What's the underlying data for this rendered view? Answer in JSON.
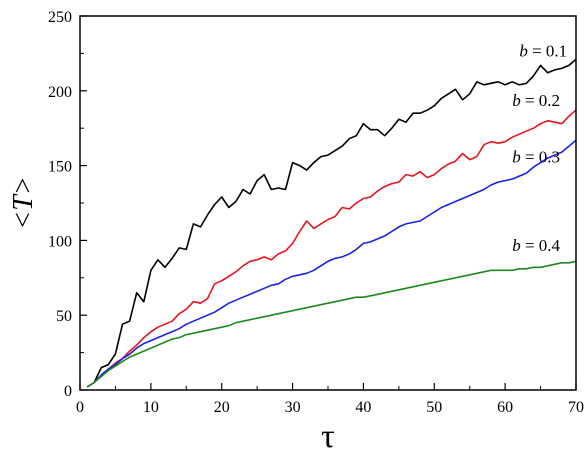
{
  "chart_data": {
    "type": "line",
    "title": "",
    "xlabel": "τ",
    "ylabel": "<T>",
    "xlim": [
      0,
      70
    ],
    "ylim": [
      0,
      250
    ],
    "xticks": [
      0,
      10,
      20,
      30,
      40,
      50,
      60,
      70
    ],
    "yticks": [
      0,
      50,
      100,
      150,
      200,
      250
    ],
    "grid": false,
    "legend": "inline labels near line ends",
    "x": [
      1,
      2,
      3,
      4,
      5,
      6,
      7,
      8,
      9,
      10,
      11,
      12,
      13,
      14,
      15,
      16,
      17,
      18,
      19,
      20,
      21,
      22,
      23,
      24,
      25,
      26,
      27,
      28,
      29,
      30,
      31,
      32,
      33,
      34,
      35,
      36,
      37,
      38,
      39,
      40,
      41,
      42,
      43,
      44,
      45,
      46,
      47,
      48,
      49,
      50,
      51,
      52,
      53,
      54,
      55,
      56,
      57,
      58,
      59,
      60,
      61,
      62,
      63,
      64,
      65,
      66,
      67,
      68,
      69,
      70
    ],
    "series": [
      {
        "name": "b = 0.1",
        "color": "#000000",
        "values": [
          2,
          5,
          15,
          17,
          24,
          44,
          46,
          65,
          59,
          80,
          87,
          82,
          88,
          95,
          94,
          111,
          109,
          117,
          124,
          129,
          122,
          126,
          134,
          131,
          140,
          144,
          134,
          135,
          134,
          152,
          150,
          147,
          152,
          156,
          157,
          160,
          163,
          168,
          170,
          178,
          174,
          174,
          170,
          175,
          181,
          179,
          185,
          185,
          187,
          190,
          195,
          198,
          201,
          194,
          198,
          206,
          204,
          205,
          206,
          204,
          206,
          204,
          205,
          210,
          217,
          212,
          214,
          215,
          217,
          221
        ]
      },
      {
        "name": "b = 0.2",
        "color": "#e8141c",
        "values": [
          2,
          5,
          10,
          14,
          18,
          21,
          26,
          30,
          35,
          39,
          42,
          44,
          46,
          51,
          54,
          59,
          58,
          61,
          71,
          73,
          76,
          79,
          83,
          86,
          87,
          89,
          87,
          91,
          93,
          98,
          106,
          113,
          108,
          111,
          114,
          116,
          122,
          121,
          125,
          128,
          129,
          133,
          136,
          138,
          139,
          144,
          143,
          146,
          142,
          144,
          148,
          151,
          153,
          158,
          154,
          156,
          164,
          166,
          165,
          166,
          169,
          171,
          173,
          175,
          178,
          180,
          179,
          178,
          183,
          187
        ]
      },
      {
        "name": "b = 0.3",
        "color": "#1a22e6",
        "values": [
          2,
          5,
          10,
          14,
          17,
          21,
          24,
          28,
          31,
          33,
          35,
          37,
          39,
          41,
          44,
          46,
          48,
          50,
          52,
          55,
          58,
          60,
          62,
          64,
          66,
          68,
          70,
          71,
          74,
          76,
          77,
          78,
          80,
          83,
          86,
          88,
          89,
          91,
          94,
          98,
          99,
          101,
          103,
          106,
          109,
          111,
          112,
          113,
          116,
          119,
          122,
          124,
          126,
          128,
          130,
          132,
          134,
          137,
          139,
          140,
          141,
          143,
          145,
          149,
          152,
          155,
          157,
          159,
          163,
          167
        ]
      },
      {
        "name": "b = 0.4",
        "color": "#1e8a1e",
        "values": [
          2,
          5,
          9,
          13,
          16,
          19,
          22,
          24,
          26,
          28,
          30,
          32,
          34,
          35,
          37,
          38,
          39,
          40,
          41,
          42,
          43,
          45,
          46,
          47,
          48,
          49,
          50,
          51,
          52,
          53,
          54,
          55,
          56,
          57,
          58,
          59,
          60,
          61,
          62,
          62,
          63,
          64,
          65,
          66,
          67,
          68,
          69,
          70,
          71,
          72,
          73,
          74,
          75,
          76,
          77,
          78,
          79,
          80,
          80,
          80,
          80,
          81,
          81,
          82,
          82,
          83,
          84,
          85,
          85,
          86
        ]
      }
    ]
  }
}
